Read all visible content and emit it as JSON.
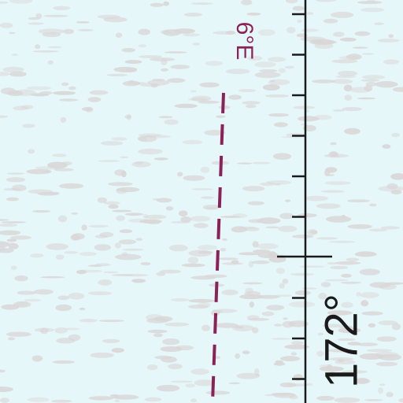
{
  "map": {
    "background_color": "#e6f7fa",
    "texture_color": "#d9d6d6",
    "isogonic_line": {
      "label": "6°E",
      "color": "#8b2257"
    },
    "meridian": {
      "label": "172°",
      "color": "#1a1a1a"
    }
  }
}
